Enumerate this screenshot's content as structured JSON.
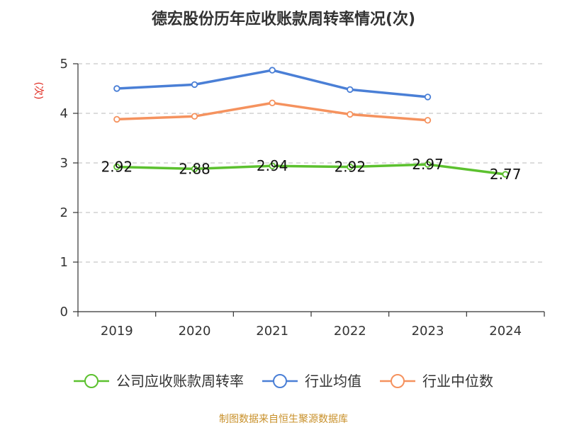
{
  "chart_data": {
    "type": "line",
    "title": "德宏股份历年应收账款周转率情况(次)",
    "ylabel": "(次)",
    "xlabel": "",
    "categories": [
      "2019",
      "2020",
      "2021",
      "2022",
      "2023",
      "2024"
    ],
    "ylim": [
      0,
      5
    ],
    "yticks": [
      0,
      1,
      2,
      3,
      4,
      5
    ],
    "grid": true,
    "legend_position": "bottom",
    "series": [
      {
        "name": "公司应收账款周转率",
        "color": "#5cc12f",
        "values": [
          2.92,
          2.88,
          2.94,
          2.92,
          2.97,
          2.77
        ],
        "labels": [
          "2.92",
          "2.88",
          "2.94",
          "2.92",
          "2.97",
          "2.77"
        ]
      },
      {
        "name": "行业均值",
        "color": "#4a7fd6",
        "values": [
          4.5,
          4.58,
          4.87,
          4.48,
          4.33,
          null
        ],
        "labels": []
      },
      {
        "name": "行业中位数",
        "color": "#f5925e",
        "values": [
          3.88,
          3.94,
          4.21,
          3.98,
          3.86,
          null
        ],
        "labels": []
      }
    ],
    "source": "制图数据来自恒生聚源数据库"
  }
}
